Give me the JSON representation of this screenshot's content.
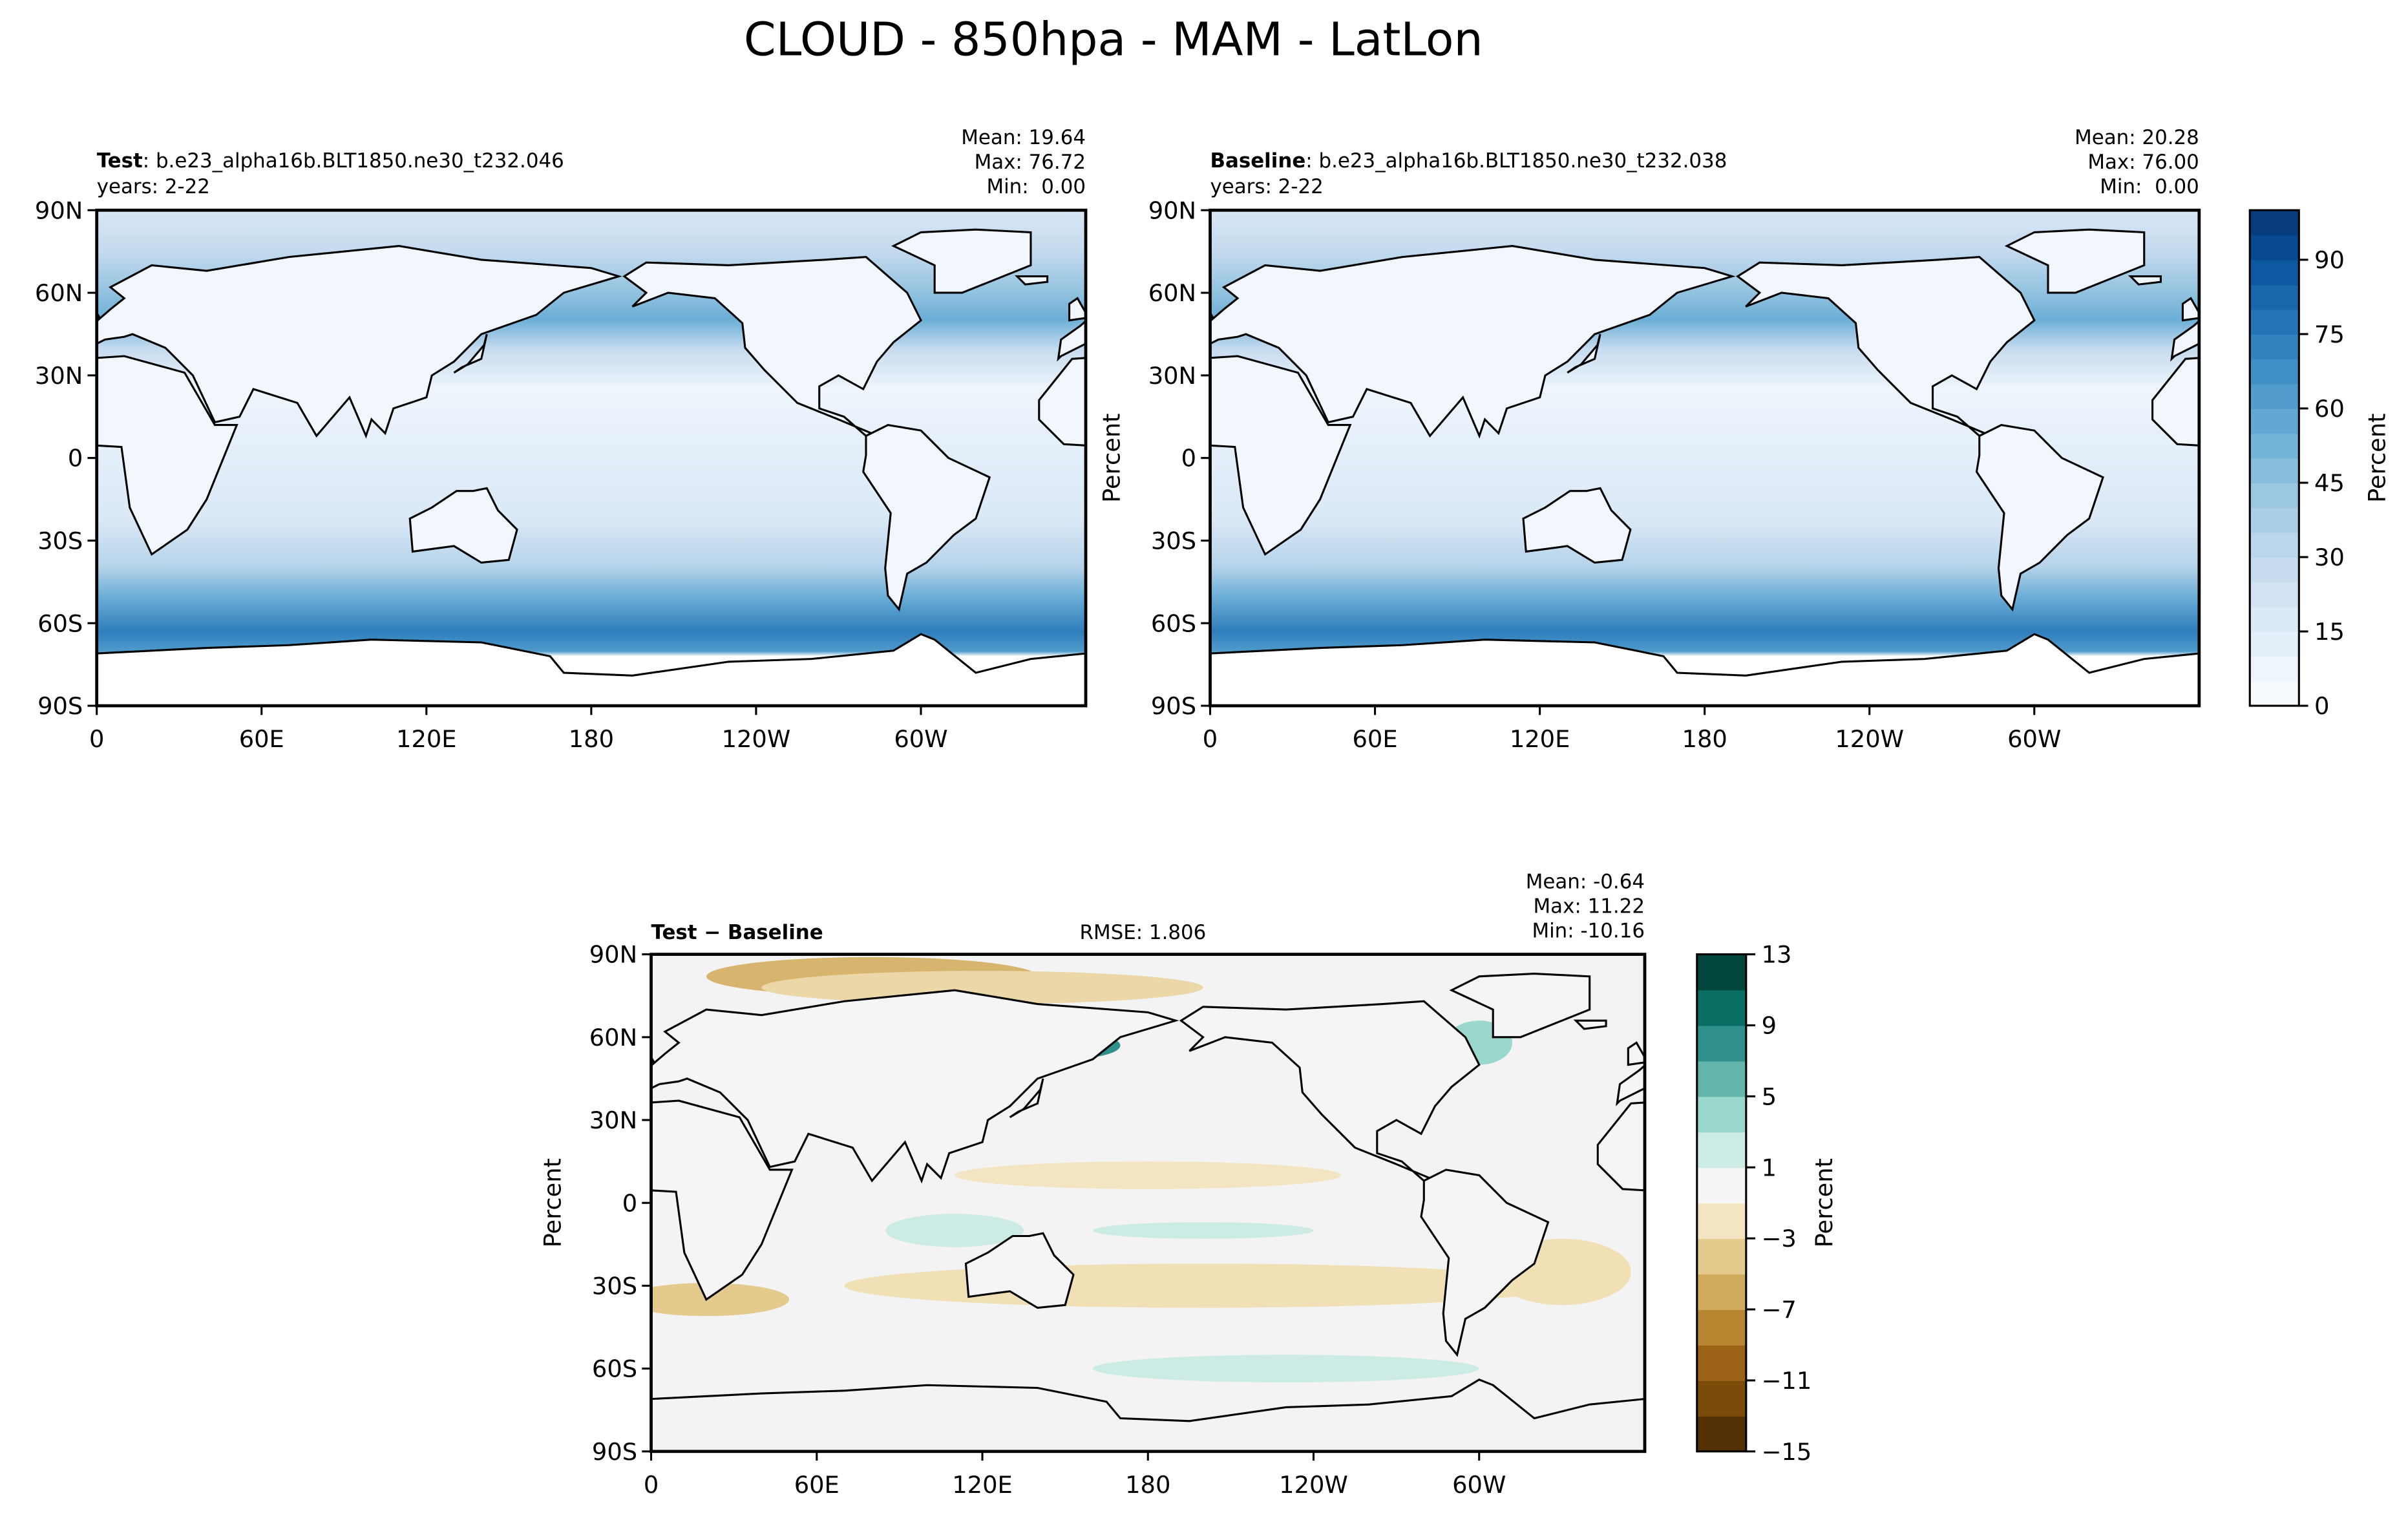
{
  "title": "CLOUD - 850hpa - MAM - LatLon",
  "map": {
    "xlim": [
      0,
      360
    ],
    "ylim": [
      -90,
      90
    ],
    "xticks": [
      0,
      {
        "value": 60,
        "label": "60E"
      },
      {
        "value": 120,
        "label": "120E"
      },
      180,
      {
        "value": 240,
        "label": "120W"
      },
      {
        "value": 300,
        "label": "60W"
      }
    ],
    "yticks": [
      {
        "value": -90,
        "label": "90S"
      },
      {
        "value": -60,
        "label": "60S"
      },
      {
        "value": -30,
        "label": "30S"
      },
      0,
      {
        "value": 30,
        "label": "30N"
      },
      {
        "value": 60,
        "label": "60N"
      },
      {
        "value": 90,
        "label": "90N"
      }
    ]
  },
  "panels": [
    {
      "name": "Test",
      "run": ": b.e23_alpha16b.BLT1850.ne30_t232.046",
      "years": "years: 2-22",
      "stats": [
        "Mean: 19.64",
        "Max: 76.72",
        "Min:  0.00"
      ]
    },
    {
      "name": "Baseline",
      "run": ": b.e23_alpha16b.BLT1850.ne30_t232.038",
      "years": "years: 2-22",
      "stats": [
        "Mean: 20.28",
        "Max: 76.00",
        "Min:  0.00"
      ],
      "ylabel": "Percent"
    },
    {
      "name": "Test − Baseline",
      "rmse": "RMSE: 1.806",
      "stats": [
        "Mean: -0.64",
        "Max: 11.22",
        "Min: -10.16"
      ],
      "ylabel": "Percent"
    }
  ],
  "colorbars": [
    {
      "label": "Percent",
      "ylim": [
        0,
        100
      ],
      "yticks": [
        0,
        15,
        30,
        45,
        60,
        75,
        90
      ],
      "colors": [
        "#f7fbff",
        "#eef5fc",
        "#e5eff9",
        "#dce9f6",
        "#d2e3f3",
        "#c8dcf0",
        "#bad6eb",
        "#abd0e6",
        "#9bc7e0",
        "#88bedc",
        "#74b3d8",
        "#62a8d3",
        "#519ccc",
        "#4090c5",
        "#3282be",
        "#2474b7",
        "#1966ad",
        "#0e58a2",
        "#084a91",
        "#083c7d"
      ]
    },
    {
      "label": "Percent",
      "ylim": [
        -15,
        13
      ],
      "yticks": [
        {
          "value": -15,
          "label": "−15"
        },
        {
          "value": -11,
          "label": "−11"
        },
        {
          "value": -7,
          "label": "−7"
        },
        {
          "value": -3,
          "label": "−3"
        },
        1,
        5,
        9,
        13
      ],
      "colors": [
        "#543005",
        "#7b4b0a",
        "#9c6316",
        "#b88631",
        "#d1ab5d",
        "#e4ca8c",
        "#f4e5c2",
        "#f5f5f5",
        "#cdebe5",
        "#9ad7cc",
        "#64b6ab",
        "#2f918a",
        "#0b6e64",
        "#01473e"
      ]
    }
  ]
}
